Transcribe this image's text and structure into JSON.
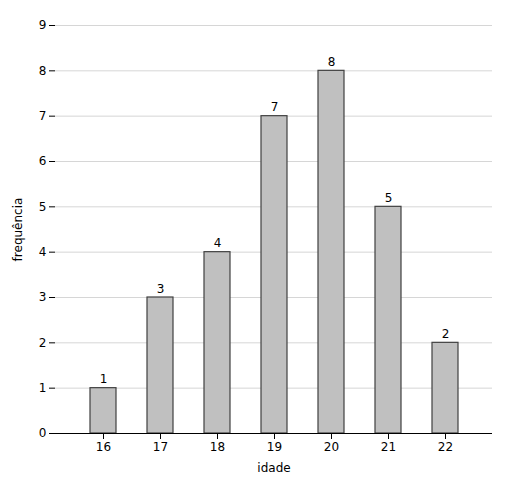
{
  "chart_data": {
    "type": "bar",
    "xlabel": "idade",
    "ylabel": "frequência",
    "categories": [
      16,
      17,
      18,
      19,
      20,
      21,
      22
    ],
    "values": [
      1,
      3,
      4,
      7,
      8,
      5,
      2
    ],
    "color": "#c0c0c0",
    "ylim": [
      0,
      9
    ],
    "yticks": [
      0,
      1,
      2,
      3,
      4,
      5,
      6,
      7,
      8,
      9
    ],
    "grid": true,
    "data_labels": true
  }
}
